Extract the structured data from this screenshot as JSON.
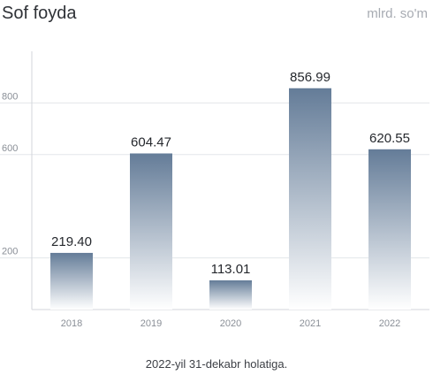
{
  "header": {
    "title": "Sof foyda",
    "unit": "mlrd. so'm"
  },
  "footer": {
    "note": "2022-yil 31-dekabr holatiga."
  },
  "colors": {
    "bar_top": "#647c98",
    "bar_bottom": "#ffffff",
    "grid": "#e3e6ea",
    "axis": "#d3d6db"
  },
  "chart_data": {
    "type": "bar",
    "title": "Sof foyda",
    "ylabel": "mlrd. so'm",
    "categories": [
      "2018",
      "2019",
      "2020",
      "2021",
      "2022"
    ],
    "values": [
      219.4,
      604.47,
      113.01,
      856.99,
      620.55
    ],
    "value_labels": [
      "219.40",
      "604.47",
      "113.01",
      "856.99",
      "620.55"
    ],
    "y_ticks": [
      200,
      600,
      800
    ],
    "ylim": [
      0,
      1000
    ],
    "grid": true,
    "legend": "none"
  }
}
